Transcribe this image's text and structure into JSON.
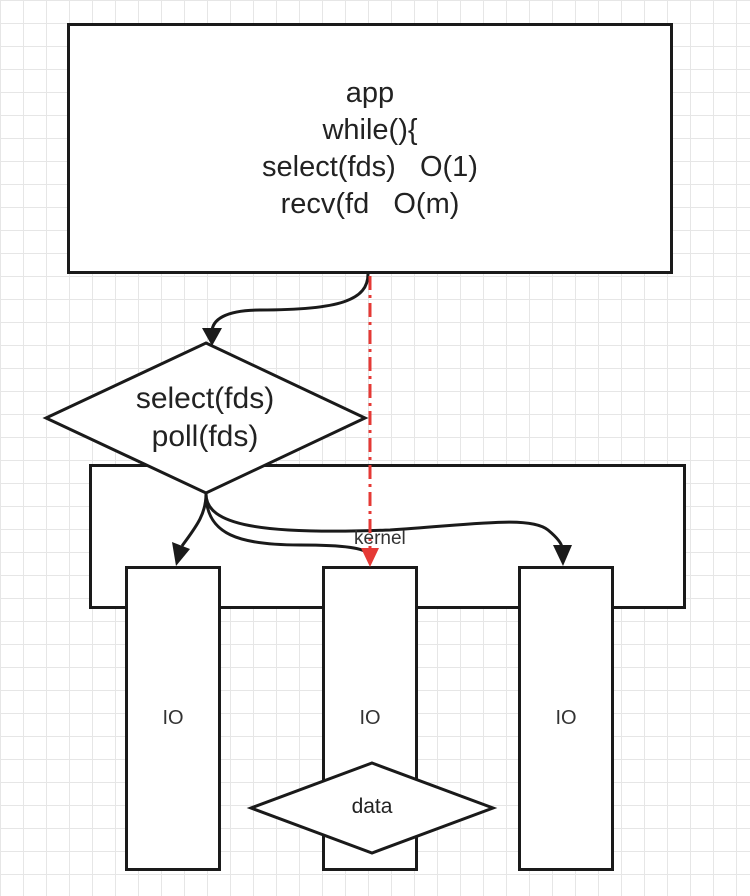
{
  "app": {
    "lines": [
      "app",
      "while(){",
      "select(fds)   O(1)",
      "recv(fd   O(m)"
    ]
  },
  "decision": {
    "lines": [
      "select(fds)",
      "poll(fds)"
    ]
  },
  "kernel": {
    "label": "kernel"
  },
  "io_columns": [
    {
      "label": "IO"
    },
    {
      "label": "IO"
    },
    {
      "label": "IO"
    }
  ],
  "data_node": {
    "label": "data"
  },
  "colors": {
    "stroke": "#1a1a1a",
    "highlight_arrow": "#e53935",
    "grid": "#e6e6e6"
  }
}
